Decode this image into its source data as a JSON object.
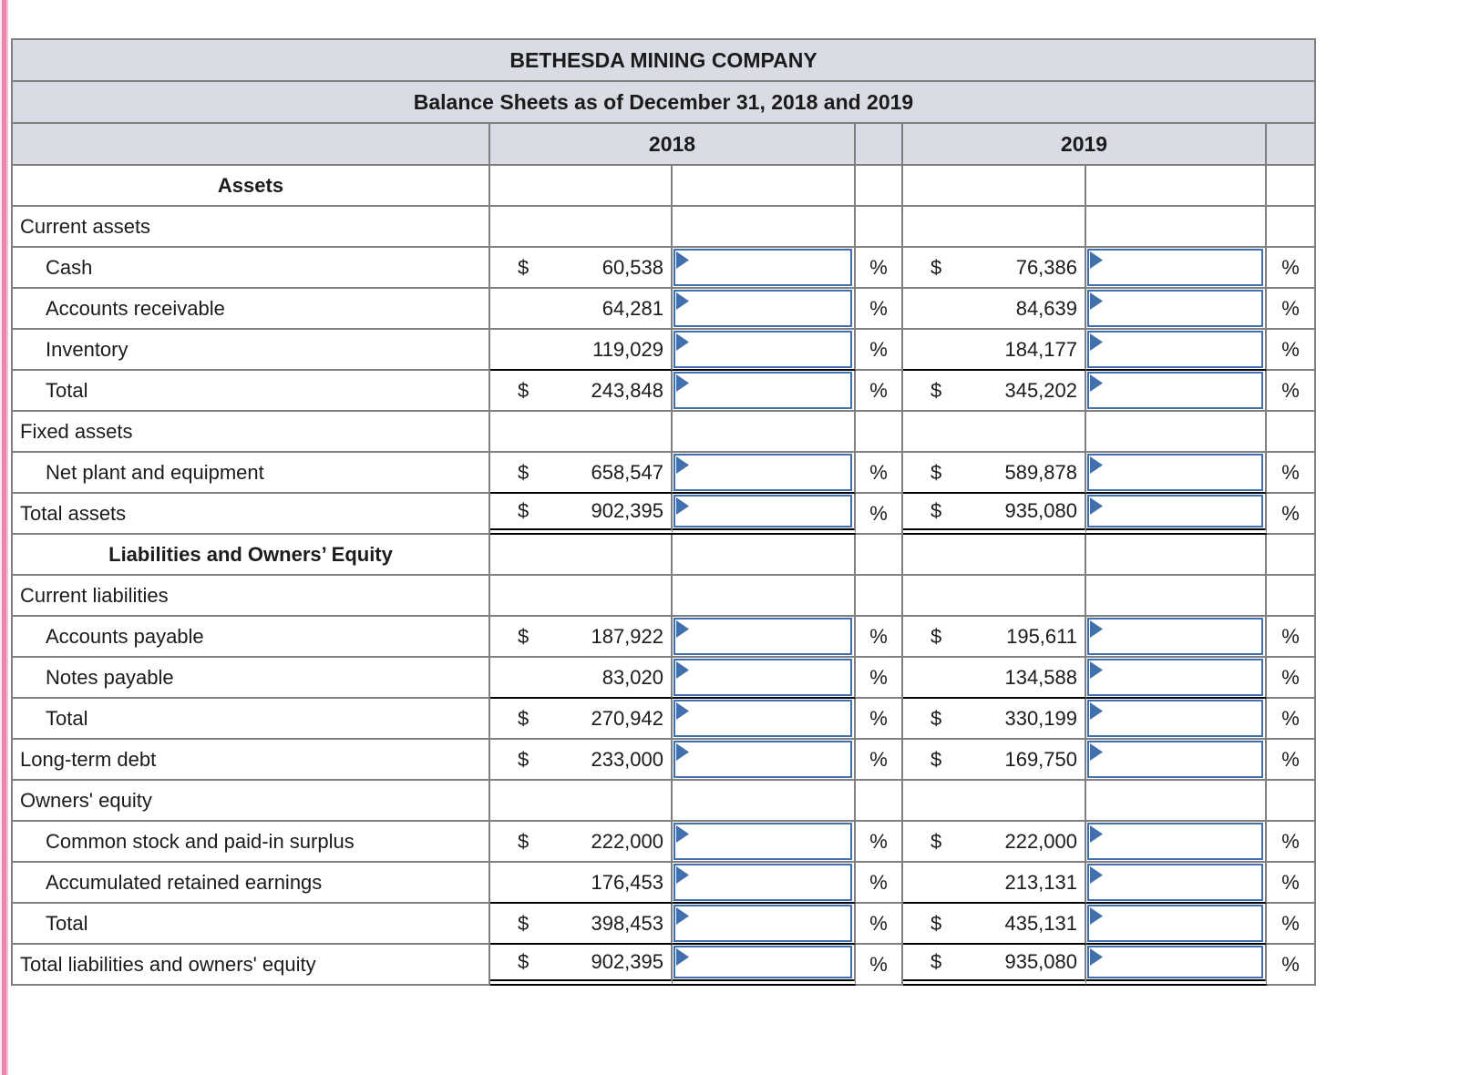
{
  "title": "BETHESDA MINING COMPANY",
  "subtitle": "Balance Sheets as of December 31, 2018 and 2019",
  "columns": [
    {
      "label": "2018"
    },
    {
      "label": "2019"
    }
  ],
  "symbols": {
    "dollar": "$",
    "percent": "%"
  },
  "colors": {
    "input_border_blue": "#4070ad",
    "header_fill": "#d9dce4",
    "grid_line": "#7f7f7f",
    "sum_line": "#000000",
    "edge_stripe_pink": "#ec86b1"
  },
  "rows": [
    {
      "label": "Assets",
      "style": "center",
      "has_input": false
    },
    {
      "label": "Current assets",
      "style": "section",
      "has_input": false
    },
    {
      "label": "Cash",
      "style": "item",
      "indent": true,
      "dollar": true,
      "has_input": true,
      "values": {
        "2018": "60,538",
        "2019": "76,386"
      }
    },
    {
      "label": "Accounts receivable",
      "style": "item",
      "indent": true,
      "dollar": false,
      "has_input": true,
      "values": {
        "2018": "64,281",
        "2019": "84,639"
      }
    },
    {
      "label": "Inventory",
      "style": "item",
      "indent": true,
      "dollar": false,
      "has_input": true,
      "values": {
        "2018": "119,029",
        "2019": "184,177"
      }
    },
    {
      "label": "Total",
      "style": "item",
      "indent": true,
      "dollar": true,
      "has_input": true,
      "sum_line_above": true,
      "values": {
        "2018": "243,848",
        "2019": "345,202"
      }
    },
    {
      "label": "Fixed assets",
      "style": "section",
      "has_input": false
    },
    {
      "label": "Net plant and equipment",
      "style": "item",
      "indent": true,
      "dollar": true,
      "has_input": true,
      "values": {
        "2018": "658,547",
        "2019": "589,878"
      }
    },
    {
      "label": "Total assets",
      "style": "item",
      "indent": false,
      "dollar": true,
      "has_input": true,
      "sum_line_above": true,
      "double_underline": true,
      "values": {
        "2018": "902,395",
        "2019": "935,080"
      }
    },
    {
      "label": "Liabilities and Owners’ Equity",
      "style": "center",
      "has_input": false
    },
    {
      "label": "Current liabilities",
      "style": "section",
      "has_input": false
    },
    {
      "label": "Accounts payable",
      "style": "item",
      "indent": true,
      "dollar": true,
      "has_input": true,
      "values": {
        "2018": "187,922",
        "2019": "195,611"
      }
    },
    {
      "label": "Notes payable",
      "style": "item",
      "indent": true,
      "dollar": false,
      "has_input": true,
      "values": {
        "2018": "83,020",
        "2019": "134,588"
      }
    },
    {
      "label": "Total",
      "style": "item",
      "indent": true,
      "dollar": true,
      "has_input": true,
      "sum_line_above": true,
      "values": {
        "2018": "270,942",
        "2019": "330,199"
      }
    },
    {
      "label": "Long-term debt",
      "style": "item",
      "indent": false,
      "dollar": true,
      "has_input": true,
      "values": {
        "2018": "233,000",
        "2019": "169,750"
      }
    },
    {
      "label": "Owners' equity",
      "style": "section",
      "has_input": false
    },
    {
      "label": "Common stock and paid-in surplus",
      "style": "item",
      "indent": true,
      "dollar": true,
      "has_input": true,
      "values": {
        "2018": "222,000",
        "2019": "222,000"
      }
    },
    {
      "label": "Accumulated retained earnings",
      "style": "item",
      "indent": true,
      "dollar": false,
      "has_input": true,
      "values": {
        "2018": "176,453",
        "2019": "213,131"
      }
    },
    {
      "label": "Total",
      "style": "item",
      "indent": true,
      "dollar": true,
      "has_input": true,
      "sum_line_above": true,
      "values": {
        "2018": "398,453",
        "2019": "435,131"
      }
    },
    {
      "label": "Total liabilities and owners' equity",
      "style": "item",
      "indent": false,
      "dollar": true,
      "has_input": true,
      "sum_line_above": true,
      "double_underline": true,
      "values": {
        "2018": "902,395",
        "2019": "935,080"
      }
    }
  ]
}
